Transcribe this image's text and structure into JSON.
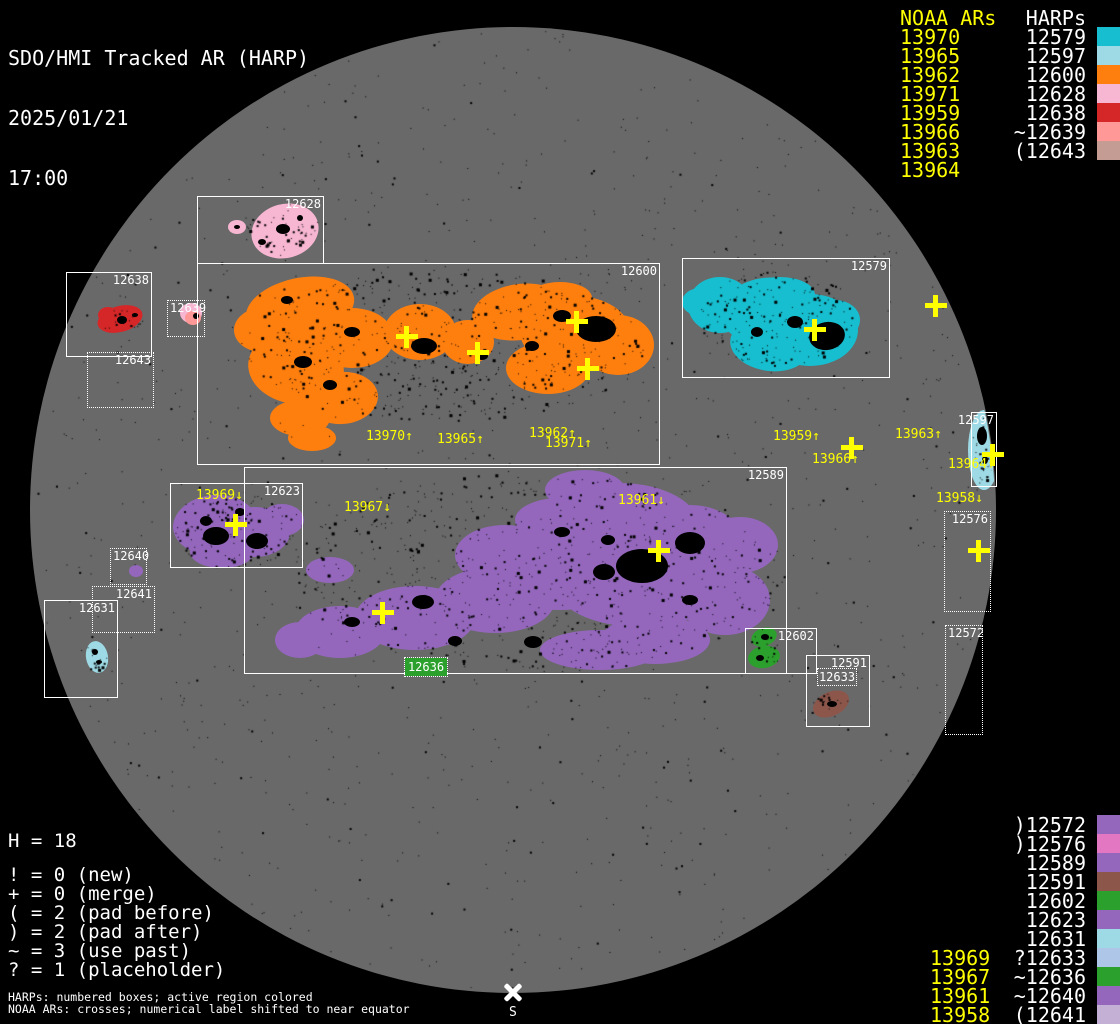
{
  "title": {
    "line1": "SDO/HMI Tracked AR (HARP)",
    "line2": "2025/01/21",
    "line3": "17:00"
  },
  "colors": {
    "background": "#000000",
    "disk": "#696969",
    "cross": "#ffff00",
    "box_border": "#ffffff",
    "noaa_text": "#ffff00",
    "harp_text": "#ffffff"
  },
  "harp_colors": {
    "12572": "#9467bd",
    "12576": "#e377c2",
    "12579": "#17becf",
    "12589": "#9467bd",
    "12591": "#8c564b",
    "12597": "#9edae5",
    "12600": "#ff7f0e",
    "12602": "#2ca02c",
    "12623": "#9467bd",
    "12628": "#f7b6d2",
    "12631": "#9edae5",
    "12633": "#aec7e8",
    "12636": "#2ca02c",
    "12638": "#d62728",
    "12639": "#ff9896",
    "12640": "#9467bd",
    "12641": "#c5b0d5",
    "12643": "#c49c94"
  },
  "legend_top": {
    "noaa_header": "NOAA ARs",
    "harp_header": "HARPs",
    "rows": [
      {
        "noaa": "13970",
        "harp": "12579",
        "color": "#17becf"
      },
      {
        "noaa": "13965",
        "harp": "12597",
        "color": "#9edae5"
      },
      {
        "noaa": "13962",
        "harp": "12600",
        "color": "#ff7f0e"
      },
      {
        "noaa": "13971",
        "harp": "12628",
        "color": "#f7b6d2"
      },
      {
        "noaa": "13959",
        "harp": "12638",
        "color": "#d62728"
      },
      {
        "noaa": "13966",
        "harp": "~12639",
        "color": "#ff9896"
      },
      {
        "noaa": "13963",
        "harp": "(12643",
        "color": "#c49c94"
      },
      {
        "noaa": "13964",
        "harp": "",
        "color": ""
      }
    ]
  },
  "legend_bottom": {
    "rows": [
      {
        "noaa": "",
        "harp": ")12572",
        "color": "#9467bd"
      },
      {
        "noaa": "",
        "harp": ")12576",
        "color": "#e377c2"
      },
      {
        "noaa": "",
        "harp": "12589",
        "color": "#9467bd"
      },
      {
        "noaa": "",
        "harp": "12591",
        "color": "#8c564b"
      },
      {
        "noaa": "",
        "harp": "12602",
        "color": "#2ca02c"
      },
      {
        "noaa": "",
        "harp": "12623",
        "color": "#9467bd"
      },
      {
        "noaa": "",
        "harp": "12631",
        "color": "#9edae5"
      },
      {
        "noaa": "13969",
        "harp": "?12633",
        "color": "#aec7e8"
      },
      {
        "noaa": "13967",
        "harp": "~12636",
        "color": "#2ca02c"
      },
      {
        "noaa": "13961",
        "harp": "~12640",
        "color": "#9467bd"
      },
      {
        "noaa": "13958",
        "harp": "(12641",
        "color": "#c5b0d5"
      }
    ]
  },
  "stats": {
    "h_count": "H = 18",
    "symbols": [
      "! = 0 (new)",
      "+ = 0 (merge)",
      "( = 2 (pad before)",
      ") = 2 (pad after)",
      "~ = 3 (use past)",
      "? = 1 (placeholder)"
    ],
    "footnote1": "HARPs: numbered boxes; active region colored",
    "footnote2": "NOAA ARs: crosses; numerical label shifted to near equator"
  },
  "south_marker": {
    "label": "S"
  },
  "boxes": [
    {
      "label": "12628"
    },
    {
      "label": "12600"
    },
    {
      "label": "12638"
    },
    {
      "label": "12639"
    },
    {
      "label": "12643"
    },
    {
      "label": "12579"
    },
    {
      "label": "12597"
    },
    {
      "label": "12576"
    },
    {
      "label": "12572"
    },
    {
      "label": "12623"
    },
    {
      "label": "12589"
    },
    {
      "label": "12640"
    },
    {
      "label": "12641"
    },
    {
      "label": "12631"
    },
    {
      "label": "12636"
    },
    {
      "label": "12602"
    },
    {
      "label": "12591"
    },
    {
      "label": "12633"
    }
  ],
  "ar_labels": [
    {
      "text": "13970↑"
    },
    {
      "text": "13965↑"
    },
    {
      "text": "13962↑"
    },
    {
      "text": "13971↑"
    },
    {
      "text": "13959↑"
    },
    {
      "text": "13966↑"
    },
    {
      "text": "13963↑"
    },
    {
      "text": "13964↑"
    },
    {
      "text": "13958↓"
    },
    {
      "text": "13969↓"
    },
    {
      "text": "13967↓"
    },
    {
      "text": "13961↓"
    }
  ],
  "chart_data": {
    "type": "solar-disk-map",
    "title": "SDO/HMI Tracked AR (HARP)",
    "timestamp": "2025/01/21 17:00",
    "harp_total": 18,
    "noaa_to_harp": [
      {
        "noaa": "13970",
        "harp": "12579"
      },
      {
        "noaa": "13965",
        "harp": "12597"
      },
      {
        "noaa": "13962",
        "harp": "12600"
      },
      {
        "noaa": "13971",
        "harp": "12628"
      },
      {
        "noaa": "13959",
        "harp": "12638"
      },
      {
        "noaa": "13966",
        "harp": "~12639"
      },
      {
        "noaa": "13963",
        "harp": "(12643"
      },
      {
        "noaa": "13969",
        "harp": "?12633"
      },
      {
        "noaa": "13967",
        "harp": "~12636"
      },
      {
        "noaa": "13961",
        "harp": "~12640"
      },
      {
        "noaa": "13958",
        "harp": "(12641"
      }
    ],
    "symbol_counts": {
      "new": 0,
      "merge": 0,
      "pad_before": 2,
      "pad_after": 2,
      "use_past": 3,
      "placeholder": 1
    }
  }
}
